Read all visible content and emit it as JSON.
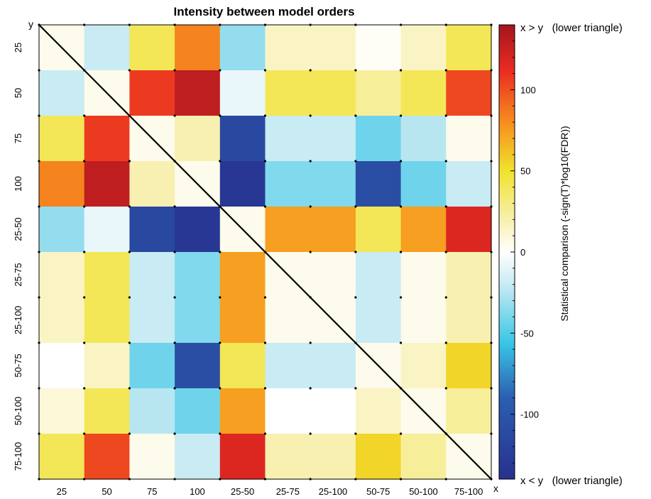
{
  "chart_data": {
    "type": "heatmap",
    "title": "Intensity between model orders",
    "categories": [
      "25",
      "50",
      "75",
      "100",
      "25-50",
      "25-75",
      "25-100",
      "50-75",
      "50-100",
      "75-100"
    ],
    "x_axis_label": "x",
    "y_axis_label": "y",
    "colorbar": {
      "label": "Statistical comparison (-sign(T)*log10(FDR))",
      "range": [
        -140,
        140
      ],
      "ticks": [
        "-100",
        "-50",
        "0",
        "50",
        "100"
      ],
      "top_note": "x > y   (lower triangle)",
      "bottom_note": "x < y   (lower triangle)",
      "colormap": "blue-cyan-white-yellow-orange-red"
    },
    "diagonal_line": true,
    "grid": true,
    "values": [
      [
        5,
        -20,
        40,
        85,
        -35,
        15,
        15,
        2,
        15,
        40
      ],
      [
        -20,
        5,
        110,
        130,
        -8,
        40,
        40,
        25,
        40,
        105
      ],
      [
        40,
        110,
        5,
        20,
        -120,
        -20,
        -20,
        -45,
        -25,
        5
      ],
      [
        85,
        130,
        20,
        5,
        -135,
        -40,
        -40,
        -115,
        -45,
        -20
      ],
      [
        -35,
        -8,
        -120,
        -135,
        5,
        75,
        75,
        40,
        75,
        120
      ],
      [
        15,
        40,
        -20,
        -40,
        75,
        5,
        5,
        -20,
        5,
        20
      ],
      [
        15,
        40,
        -20,
        -40,
        75,
        5,
        5,
        -20,
        5,
        20
      ],
      [
        0,
        15,
        -45,
        -115,
        40,
        -20,
        -20,
        5,
        15,
        55
      ],
      [
        10,
        40,
        -25,
        -45,
        75,
        0,
        0,
        15,
        5,
        25
      ],
      [
        40,
        105,
        5,
        -20,
        120,
        20,
        20,
        55,
        25,
        5
      ]
    ]
  }
}
